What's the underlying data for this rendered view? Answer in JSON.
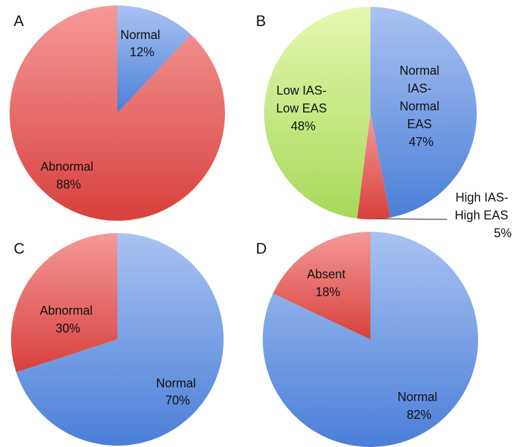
{
  "colors": {
    "blue_light": "#a9c3f2",
    "blue_dark": "#4a7fd7",
    "red_light": "#f49a97",
    "red_dark": "#d9403c",
    "green_light": "#e6f7b0",
    "green_dark": "#a7d85a"
  },
  "chart_data": [
    {
      "type": "pie",
      "panel": "A",
      "slices": [
        {
          "label": [
            "Normal",
            "12%"
          ],
          "value": 12,
          "color": "blue"
        },
        {
          "label": [
            "Abnormal",
            "88%"
          ],
          "value": 88,
          "color": "red"
        }
      ]
    },
    {
      "type": "pie",
      "panel": "B",
      "slices": [
        {
          "label": [
            "Normal",
            "IAS-",
            "Normal",
            "EAS",
            "47%"
          ],
          "value": 47,
          "color": "blue"
        },
        {
          "label": [
            "High IAS-",
            "High EAS",
            "5%"
          ],
          "value": 5,
          "color": "red"
        },
        {
          "label": [
            "Low IAS-",
            "Low EAS",
            "48%"
          ],
          "value": 48,
          "color": "green"
        }
      ]
    },
    {
      "type": "pie",
      "panel": "C",
      "slices": [
        {
          "label": [
            "Normal",
            "70%"
          ],
          "value": 70,
          "color": "blue"
        },
        {
          "label": [
            "Abnormal",
            "30%"
          ],
          "value": 30,
          "color": "red"
        }
      ]
    },
    {
      "type": "pie",
      "panel": "D",
      "slices": [
        {
          "label": [
            "Normal",
            "82%"
          ],
          "value": 82,
          "color": "blue"
        },
        {
          "label": [
            "Absent",
            "18%"
          ],
          "value": 18,
          "color": "red"
        }
      ]
    }
  ]
}
